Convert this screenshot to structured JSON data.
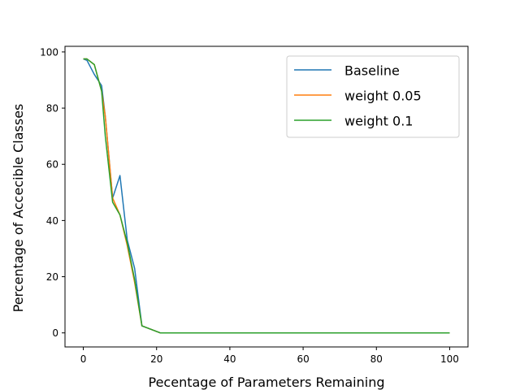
{
  "chart_data": {
    "type": "line",
    "title": "",
    "xlabel": "Pecentage of Parameters Remaining",
    "ylabel": "Percentage of Accecible Classes",
    "xlim": [
      -5,
      105
    ],
    "ylim": [
      -5,
      102
    ],
    "xticks": [
      0,
      20,
      40,
      60,
      80,
      100
    ],
    "yticks": [
      0,
      20,
      40,
      60,
      80,
      100
    ],
    "grid": false,
    "legend_position": "top-right",
    "series": [
      {
        "name": "Baseline",
        "color": "#1f77b4",
        "x": [
          0,
          1,
          3,
          5,
          6,
          8,
          10,
          12,
          14,
          16,
          21,
          25,
          30,
          40,
          50,
          60,
          70,
          80,
          90,
          100
        ],
        "y": [
          97.5,
          97,
          92,
          88,
          77,
          48,
          56,
          33,
          23,
          2.5,
          0,
          0,
          0,
          0,
          0,
          0,
          0,
          0,
          0,
          0
        ]
      },
      {
        "name": "weight 0.05",
        "color": "#ff7f0e",
        "x": [
          0,
          1,
          3,
          5,
          6,
          8,
          10,
          12,
          14,
          16,
          21,
          25,
          30,
          40,
          50,
          60,
          70,
          80,
          90,
          100
        ],
        "y": [
          97.5,
          97.5,
          95.5,
          86,
          77,
          48,
          42,
          31,
          18,
          2.5,
          0,
          0,
          0,
          0,
          0,
          0,
          0,
          0,
          0,
          0
        ]
      },
      {
        "name": "weight 0.1",
        "color": "#2ca02c",
        "x": [
          0,
          1,
          3,
          5,
          6,
          8,
          10,
          12,
          14,
          16,
          21,
          25,
          30,
          40,
          50,
          60,
          70,
          80,
          90,
          100
        ],
        "y": [
          97.5,
          97.5,
          95.5,
          86,
          70,
          46.5,
          42,
          32,
          19,
          2.5,
          0,
          0,
          0,
          0,
          0,
          0,
          0,
          0,
          0,
          0
        ]
      }
    ]
  }
}
